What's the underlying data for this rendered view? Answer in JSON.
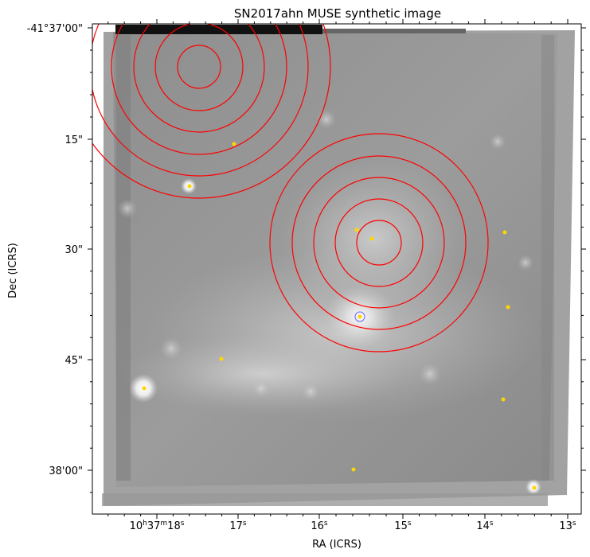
{
  "title": "SN2017ahn MUSE synthetic image",
  "xlabel": "RA (ICRS)",
  "ylabel": "Dec (ICRS)",
  "ra_ticks": [
    {
      "base": "10",
      "h": "h",
      "mid": "37",
      "m": "m",
      "sec": "18",
      "s": "s"
    },
    {
      "base": "",
      "h": "",
      "mid": "",
      "m": "",
      "sec": "17",
      "s": "s"
    },
    {
      "base": "",
      "h": "",
      "mid": "",
      "m": "",
      "sec": "16",
      "s": "s"
    },
    {
      "base": "",
      "h": "",
      "mid": "",
      "m": "",
      "sec": "15",
      "s": "s"
    },
    {
      "base": "",
      "h": "",
      "mid": "",
      "m": "",
      "sec": "14",
      "s": "s"
    },
    {
      "base": "",
      "h": "",
      "mid": "",
      "m": "",
      "sec": "13",
      "s": "s"
    }
  ],
  "dec_ticks": [
    "-41°37'00\"",
    "15\"",
    "30\"",
    "45\"",
    "38'00\""
  ],
  "colors": {
    "aperture_rings": "#ff0000",
    "sources": "#ffd700",
    "sn_marker": "#8080ff",
    "image_colormap": "gray"
  }
}
